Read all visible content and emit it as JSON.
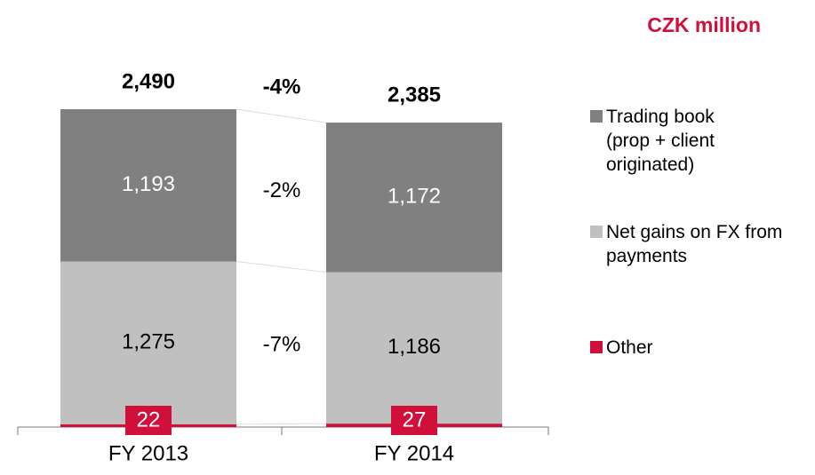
{
  "chart_data": {
    "type": "stacked_bar",
    "unit_label": "CZK million",
    "categories": [
      "FY 2013",
      "FY 2014"
    ],
    "series": [
      {
        "name": "Other",
        "color": "#d0103a",
        "values": [
          22,
          27
        ],
        "value_labels": [
          "22",
          "27"
        ]
      },
      {
        "name": "Net gains on FX from payments",
        "color": "#c0c0c0",
        "values": [
          1275,
          1186
        ],
        "value_labels": [
          "1,275",
          "1,186"
        ],
        "change": "-7%"
      },
      {
        "name": "Trading book (prop + client originated)",
        "color": "#808080",
        "values": [
          1193,
          1172
        ],
        "value_labels": [
          "1,193",
          "1,172"
        ],
        "change": "-2%"
      }
    ],
    "totals": [
      2490,
      2385
    ],
    "total_labels": [
      "2,490",
      "2,385"
    ],
    "total_change": "-4%"
  }
}
